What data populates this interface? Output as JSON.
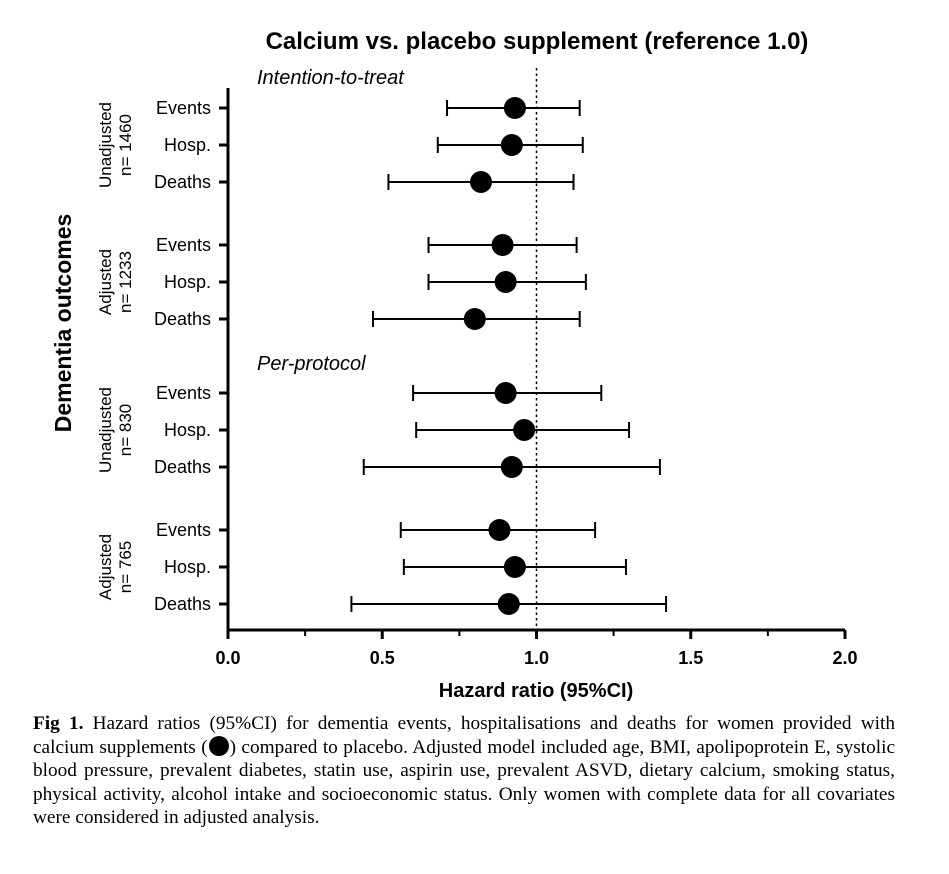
{
  "chart_data": {
    "type": "forest",
    "title": "Calcium vs. placebo supplement (reference 1.0)",
    "xlabel": "Hazard ratio (95%CI)",
    "ylabel": "Dementia outcomes",
    "xlim": [
      0.0,
      2.0
    ],
    "xticks": [
      "0.0",
      "0.5",
      "1.0",
      "1.5",
      "2.0"
    ],
    "xtick_values": [
      0.0,
      0.5,
      1.0,
      1.5,
      2.0
    ],
    "reference_line": 1.0,
    "sections": [
      {
        "label": "Intention-to-treat",
        "groups": [
          {
            "label1": "Unadjusted",
            "label2": "n= 1460",
            "rows": [
              {
                "outcome": "Events",
                "hr": 0.93,
                "lo": 0.71,
                "hi": 1.14
              },
              {
                "outcome": "Hosp.",
                "hr": 0.92,
                "lo": 0.68,
                "hi": 1.15
              },
              {
                "outcome": "Deaths",
                "hr": 0.82,
                "lo": 0.52,
                "hi": 1.12
              }
            ]
          },
          {
            "label1": "Adjusted",
            "label2": "n= 1233",
            "rows": [
              {
                "outcome": "Events",
                "hr": 0.89,
                "lo": 0.65,
                "hi": 1.13
              },
              {
                "outcome": "Hosp.",
                "hr": 0.9,
                "lo": 0.65,
                "hi": 1.16
              },
              {
                "outcome": "Deaths",
                "hr": 0.8,
                "lo": 0.47,
                "hi": 1.14
              }
            ]
          }
        ]
      },
      {
        "label": "Per-protocol",
        "groups": [
          {
            "label1": "Unadjusted",
            "label2": "n= 830",
            "rows": [
              {
                "outcome": "Events",
                "hr": 0.9,
                "lo": 0.6,
                "hi": 1.21
              },
              {
                "outcome": "Hosp.",
                "hr": 0.96,
                "lo": 0.61,
                "hi": 1.3
              },
              {
                "outcome": "Deaths",
                "hr": 0.92,
                "lo": 0.44,
                "hi": 1.4
              }
            ]
          },
          {
            "label1": "Adjusted",
            "label2": "n= 765",
            "rows": [
              {
                "outcome": "Events",
                "hr": 0.88,
                "lo": 0.56,
                "hi": 1.19
              },
              {
                "outcome": "Hosp.",
                "hr": 0.93,
                "lo": 0.57,
                "hi": 1.29
              },
              {
                "outcome": "Deaths",
                "hr": 0.91,
                "lo": 0.4,
                "hi": 1.42
              }
            ]
          }
        ]
      }
    ]
  },
  "caption": {
    "label": "Fig 1.",
    "text_before": " Hazard ratios (95%CI) for dementia events, hospitalisations and deaths for women provided with calcium supplements (",
    "text_after": ") compared to placebo. Adjusted model included age, BMI, apolipoprotein E, systolic blood pressure, prevalent diabetes, statin use, aspirin use, prevalent ASVD, dietary calcium, smoking status, physical activity, alcohol intake and socioeconomic status. Only women with complete data for all covariates were considered in adjusted analysis."
  },
  "colors": {
    "ink": "#000000",
    "background": "#ffffff"
  }
}
